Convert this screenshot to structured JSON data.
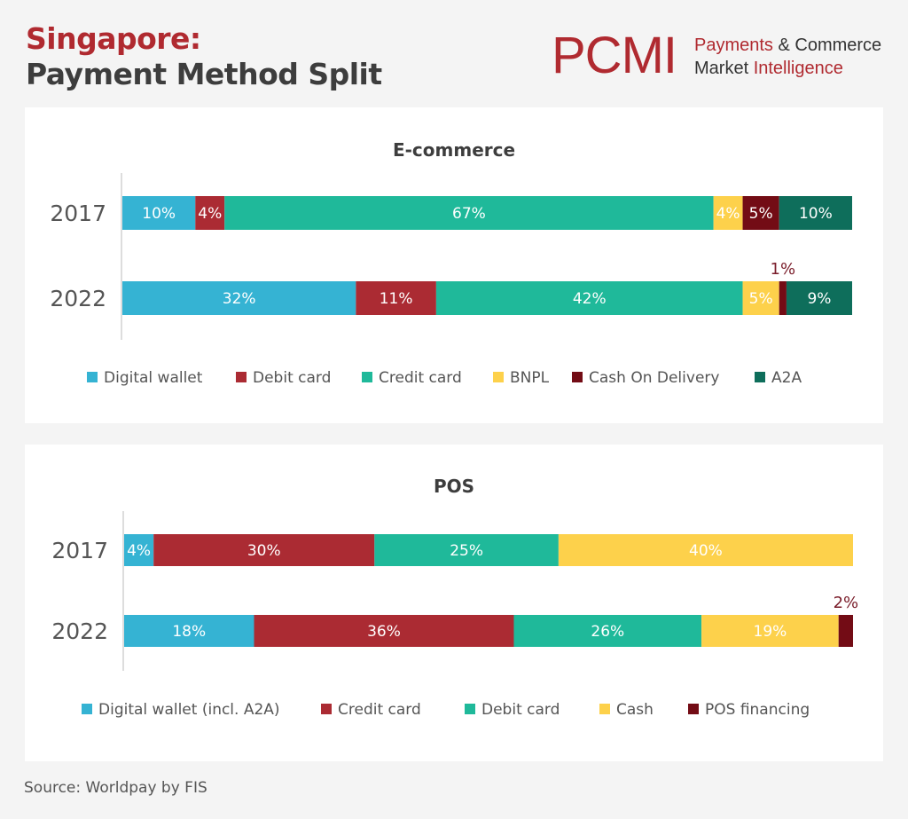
{
  "header": {
    "title_line1": "Singapore:",
    "title_line2": "Payment Method Split",
    "logo": {
      "mark": "PCMI",
      "line1_red": "Payments",
      "line1_dark": " & Commerce",
      "line2_dark": "Market ",
      "line2_red": "Intelligence"
    }
  },
  "source": "Source: Worldpay by FIS",
  "chart_data": [
    {
      "type": "bar",
      "orientation": "horizontal",
      "stacked": true,
      "title": "E-commerce",
      "categories": [
        "2017",
        "2022"
      ],
      "xlim": [
        0,
        100
      ],
      "legend_position": "bottom",
      "series": [
        {
          "name": "Digital wallet",
          "color": "#35b3d3",
          "values": [
            10,
            32
          ],
          "labels": [
            "10%",
            "32%"
          ]
        },
        {
          "name": "Debit card",
          "color": "#ab2b33",
          "values": [
            4,
            11
          ],
          "labels": [
            "4%",
            "11%"
          ]
        },
        {
          "name": "Credit card",
          "color": "#1fb99a",
          "values": [
            67,
            42
          ],
          "labels": [
            "67%",
            "42%"
          ]
        },
        {
          "name": "BNPL",
          "color": "#fdd14b",
          "values": [
            4,
            5
          ],
          "labels": [
            "4%",
            "5%"
          ]
        },
        {
          "name": "Cash On Delivery",
          "color": "#730c15",
          "values": [
            5,
            1
          ],
          "labels": [
            "5%",
            "1%"
          ]
        },
        {
          "name": "A2A",
          "color": "#0e6e5b",
          "values": [
            10,
            9
          ],
          "labels": [
            "10%",
            "9%"
          ]
        }
      ]
    },
    {
      "type": "bar",
      "orientation": "horizontal",
      "stacked": true,
      "title": "POS",
      "categories": [
        "2017",
        "2022"
      ],
      "xlim": [
        0,
        100
      ],
      "legend_position": "bottom",
      "series": [
        {
          "name": "Digital wallet (incl. A2A)",
          "color": "#35b3d3",
          "values": [
            4,
            18
          ],
          "labels": [
            "4%",
            "18%"
          ]
        },
        {
          "name": "Credit card",
          "color": "#ab2b33",
          "values": [
            30,
            36
          ],
          "labels": [
            "30%",
            "36%"
          ]
        },
        {
          "name": "Debit card",
          "color": "#1fb99a",
          "values": [
            25,
            26
          ],
          "labels": [
            "25%",
            "26%"
          ]
        },
        {
          "name": "Cash",
          "color": "#fdd14b",
          "values": [
            40,
            19
          ],
          "labels": [
            "40%",
            "19%"
          ]
        },
        {
          "name": "POS financing",
          "color": "#730c15",
          "values": [
            0,
            2
          ],
          "labels": [
            "",
            "2%"
          ]
        }
      ]
    }
  ]
}
